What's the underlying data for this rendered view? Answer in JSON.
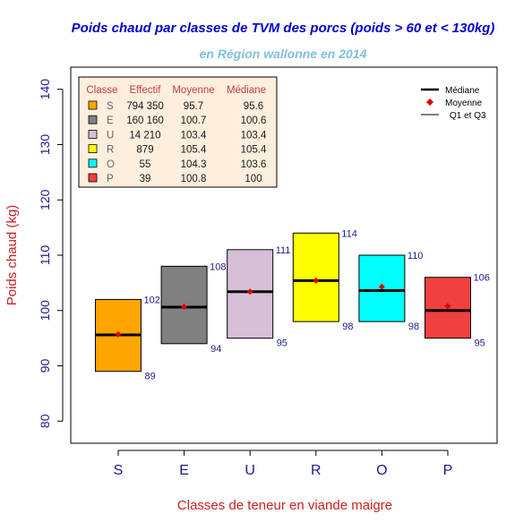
{
  "chart_data": {
    "type": "box",
    "title": "Poids chaud par classes de TVM des porcs (poids > 60 et < 130kg)",
    "subtitle": "en Région wallonne en 2014",
    "xlabel": "Classes de teneur en viande maigre",
    "ylabel": "Poids chaud (kg)",
    "ylim": [
      76,
      144
    ],
    "yticks": [
      80,
      90,
      100,
      110,
      120,
      130,
      140
    ],
    "categories": [
      "S",
      "E",
      "U",
      "R",
      "O",
      "P"
    ],
    "colors": [
      "#ffa500",
      "#808080",
      "#d8bfd8",
      "#ffff00",
      "#00ffff",
      "#f04040"
    ],
    "q1": [
      89,
      94,
      95,
      98,
      98,
      95
    ],
    "q3": [
      102,
      108,
      111,
      114,
      110,
      106
    ],
    "q1_labels": [
      "89",
      "94",
      "95",
      "98",
      "98",
      "95"
    ],
    "q3_labels": [
      "102",
      "108",
      "111",
      "114",
      "110",
      "106"
    ],
    "median": [
      95.6,
      100.6,
      103.4,
      105.4,
      103.6,
      100
    ],
    "mean": [
      95.7,
      100.7,
      103.4,
      105.4,
      104.3,
      100.8
    ],
    "table": {
      "headers": [
        "Classe",
        "Effectif",
        "Moyenne",
        "Médiane"
      ],
      "rows": [
        {
          "classe": "S",
          "effectif": "794 350",
          "moyenne": "95.7",
          "mediane": "95.6"
        },
        {
          "classe": "E",
          "effectif": "160 160",
          "moyenne": "100.7",
          "mediane": "100.6"
        },
        {
          "classe": "U",
          "effectif": "14 210",
          "moyenne": "103.4",
          "mediane": "103.4"
        },
        {
          "classe": "R",
          "effectif": "879",
          "moyenne": "105.4",
          "mediane": "105.4"
        },
        {
          "classe": "O",
          "effectif": "55",
          "moyenne": "104.3",
          "mediane": "103.6"
        },
        {
          "classe": "P",
          "effectif": "39",
          "moyenne": "100.8",
          "mediane": "100"
        }
      ]
    },
    "legend": {
      "placement": "top-right",
      "entries": [
        "Médiane",
        "Moyenne",
        "Q1 et Q3"
      ]
    },
    "grid": false
  }
}
